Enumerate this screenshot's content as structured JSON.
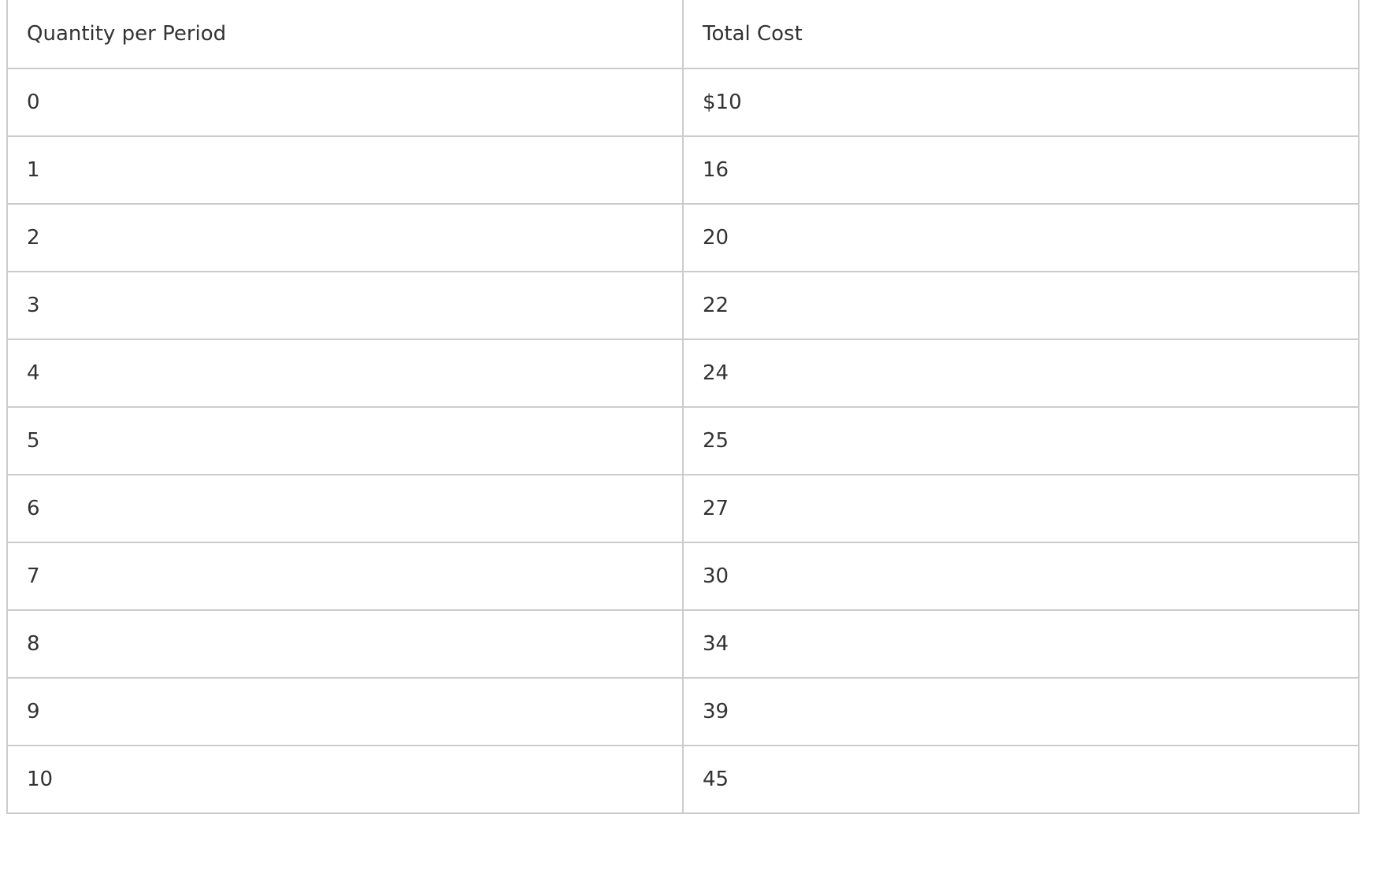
{
  "table": {
    "headers": [
      "Quantity per Period",
      "Total Cost"
    ],
    "rows": [
      [
        "0",
        "$10"
      ],
      [
        "1",
        "16"
      ],
      [
        "2",
        "20"
      ],
      [
        "3",
        "22"
      ],
      [
        "4",
        "24"
      ],
      [
        "5",
        "25"
      ],
      [
        "6",
        "27"
      ],
      [
        "7",
        "30"
      ],
      [
        "8",
        "34"
      ],
      [
        "9",
        "39"
      ],
      [
        "10",
        "45"
      ]
    ]
  }
}
